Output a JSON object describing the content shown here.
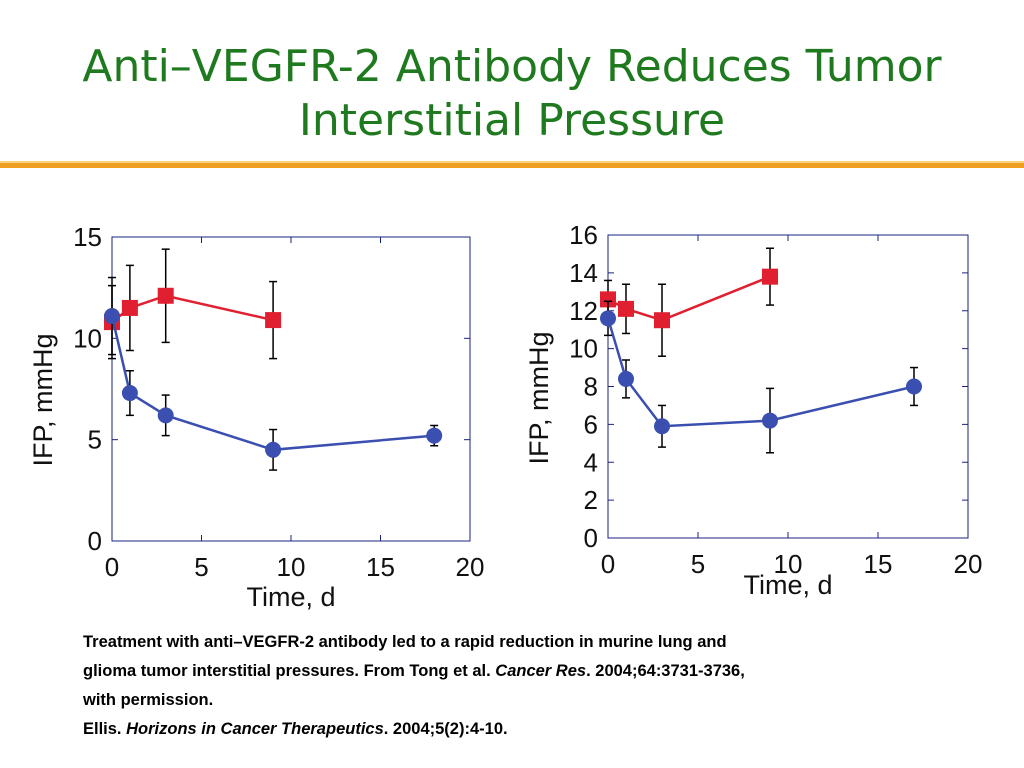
{
  "slide": {
    "title_line1": "Anti–VEGFR-2 Antibody Reduces Tumor",
    "title_line2": "Interstitial Pressure"
  },
  "caption": {
    "line1": "Treatment with anti–VEGFR-2 antibody led to a rapid reduction in murine lung and",
    "line2_a": "glioma tumor interstitial pressures. From Tong et al. ",
    "line2_journal": "Cancer Res",
    "line2_b": ". 2004;64:3731-3736,",
    "line3": "with permission.",
    "line4_a": "Ellis. ",
    "line4_journal": "Horizons in Cancer Therapeutics",
    "line4_b": ". 2004;5(2):4-10."
  },
  "colors": {
    "title": "#1f7a1f",
    "accent_rule": "#f0a020",
    "series_red": "#e02030",
    "series_blue": "#3a4fb0",
    "axis": "#1a237e"
  },
  "chart_data": [
    {
      "type": "line",
      "title": "",
      "xlabel": "Time, d",
      "ylabel": "IFP, mmHg",
      "xlim": [
        0,
        20
      ],
      "ylim": [
        0,
        15
      ],
      "xticks": [
        0,
        5,
        10,
        15,
        20
      ],
      "yticks": [
        0,
        5,
        10,
        15
      ],
      "grid": false,
      "series": [
        {
          "marker": "square",
          "color": "#e02030",
          "x": [
            0,
            1,
            3,
            9
          ],
          "y": [
            10.8,
            11.5,
            12.1,
            10.9
          ],
          "err": [
            1.8,
            2.1,
            2.3,
            1.9
          ]
        },
        {
          "marker": "circle",
          "color": "#3a4fb0",
          "x": [
            0,
            1,
            3,
            9,
            18
          ],
          "y": [
            11.1,
            7.3,
            6.2,
            4.5,
            5.2
          ],
          "err": [
            1.9,
            1.1,
            1.0,
            1.0,
            0.5
          ]
        }
      ]
    },
    {
      "type": "line",
      "title": "",
      "xlabel": "Time, d",
      "ylabel": "IFP, mmHg",
      "xlim": [
        0,
        20
      ],
      "ylim": [
        0,
        16
      ],
      "xticks": [
        0,
        5,
        10,
        15,
        20
      ],
      "yticks": [
        0,
        2,
        4,
        6,
        8,
        10,
        12,
        14,
        16
      ],
      "grid": false,
      "series": [
        {
          "marker": "square",
          "color": "#e02030",
          "x": [
            0,
            1,
            3,
            9
          ],
          "y": [
            12.6,
            12.1,
            11.5,
            13.8
          ],
          "err": [
            1.0,
            1.3,
            1.9,
            1.5
          ]
        },
        {
          "marker": "circle",
          "color": "#3a4fb0",
          "x": [
            0,
            1,
            3,
            9,
            17
          ],
          "y": [
            11.6,
            8.4,
            5.9,
            6.2,
            8.0
          ],
          "err": [
            0.9,
            1.0,
            1.1,
            1.7,
            1.0
          ]
        }
      ]
    }
  ]
}
